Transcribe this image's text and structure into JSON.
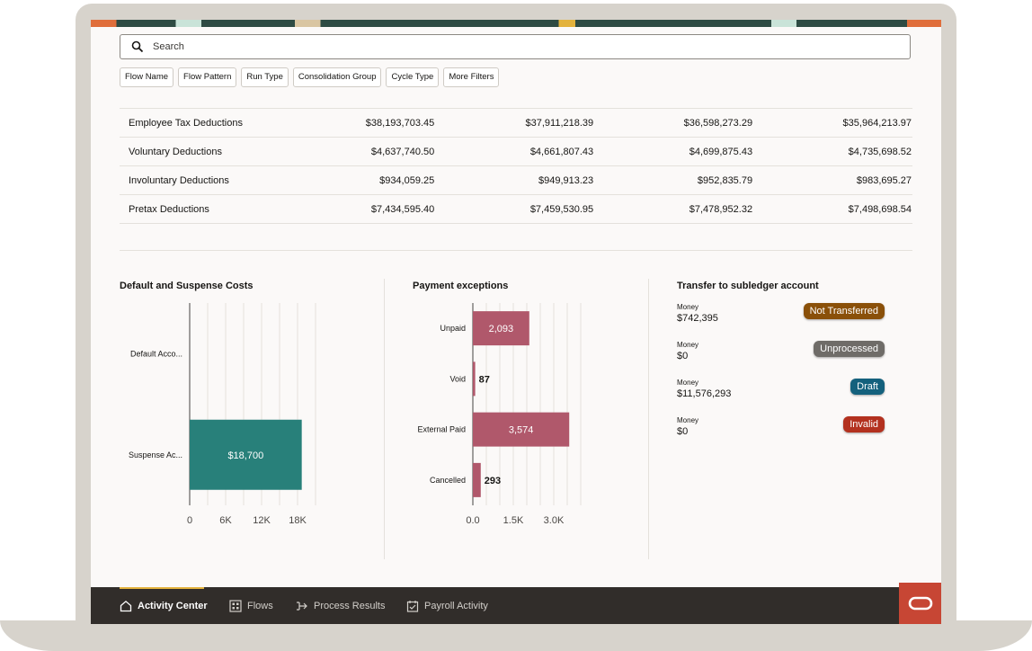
{
  "search": {
    "placeholder": "Search"
  },
  "filters": [
    "Flow Name",
    "Flow Pattern",
    "Run Type",
    "Consolidation Group",
    "Cycle Type",
    "More Filters"
  ],
  "deductions_table": {
    "rows": [
      {
        "label": "Employee Tax Deductions",
        "values": [
          "$38,193,703.45",
          "$37,911,218.39",
          "$36,598,273.29",
          "$35,964,213.97"
        ]
      },
      {
        "label": "Voluntary Deductions",
        "values": [
          "$4,637,740.50",
          "$4,661,807.43",
          "$4,699,875.43",
          "$4,735,698.52"
        ]
      },
      {
        "label": "Involuntary Deductions",
        "values": [
          "$934,059.25",
          "$949,913.23",
          "$952,835.79",
          "$983,695.27"
        ]
      },
      {
        "label": "Pretax Deductions",
        "values": [
          "$7,434,595.40",
          "$7,459,530.95",
          "$7,478,952.32",
          "$7,498,698.54"
        ]
      }
    ]
  },
  "panels": {
    "default_suspense": {
      "title": "Default and Suspense Costs"
    },
    "payment_exceptions": {
      "title": "Payment exceptions"
    },
    "transfer": {
      "title": "Transfer to subledger account",
      "items": [
        {
          "label": "Money",
          "value": "$742,395",
          "status": "Not Transferred",
          "status_color": "#8a5009"
        },
        {
          "label": "Money",
          "value": "$0",
          "status": "Unprocessed",
          "status_color": "#6f6c68"
        },
        {
          "label": "Money",
          "value": "$11,576,293",
          "status": "Draft",
          "status_color": "#14617d"
        },
        {
          "label": "Money",
          "value": "$0",
          "status": "Invalid",
          "status_color": "#b3311f"
        }
      ]
    }
  },
  "chart_data": [
    {
      "type": "bar",
      "orientation": "horizontal",
      "title": "Default and Suspense Costs",
      "categories": [
        "Default Acco...",
        "Suspense Ac..."
      ],
      "values": [
        0,
        18700
      ],
      "data_labels": [
        "",
        "$18,700"
      ],
      "x_ticks": [
        "0",
        "6K",
        "12K",
        "18K"
      ],
      "xlim": [
        0,
        21000
      ],
      "color": "#28807a",
      "grid": true
    },
    {
      "type": "bar",
      "orientation": "horizontal",
      "title": "Payment exceptions",
      "categories": [
        "Unpaid",
        "Void",
        "External Paid",
        "Cancelled"
      ],
      "values": [
        2093,
        87,
        3574,
        293
      ],
      "data_labels": [
        "2,093",
        "87",
        "3,574",
        "293"
      ],
      "x_ticks": [
        "0.0",
        "1.5K",
        "3.0K"
      ],
      "xlim": [
        0,
        4000
      ],
      "color": "#b0586b",
      "grid": true
    }
  ],
  "bottom_nav": {
    "items": [
      {
        "label": "Activity Center",
        "icon": "home-icon",
        "active": true
      },
      {
        "label": "Flows",
        "icon": "grid-icon",
        "active": false
      },
      {
        "label": "Process Results",
        "icon": "process-icon",
        "active": false
      },
      {
        "label": "Payroll Activity",
        "icon": "calendar-check-icon",
        "active": false
      }
    ]
  },
  "brand": {
    "logo": "oracle-logo",
    "color": "#c74634"
  }
}
